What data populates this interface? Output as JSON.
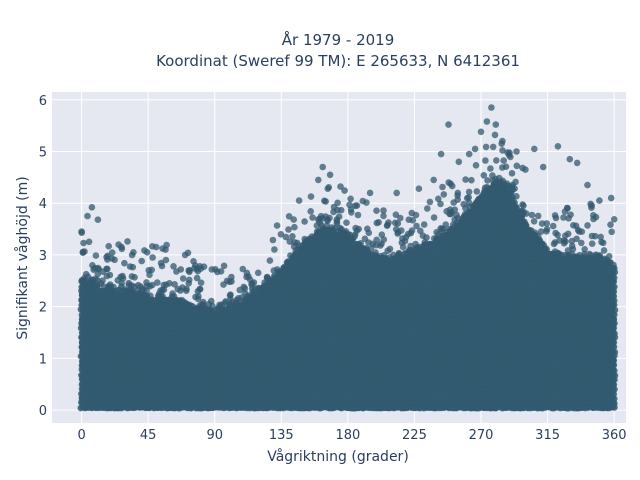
{
  "chart_data": {
    "type": "scatter",
    "title_line1": "År 1979 - 2019",
    "title_line2": "Koordinat (Sweref 99 TM): E 265633, N 6412361",
    "xlabel": "Vågriktning (grader)",
    "ylabel": "Signifikant våghöjd (m)",
    "xlim": [
      -20,
      368
    ],
    "ylim": [
      -0.25,
      6.15
    ],
    "xticks": [
      0,
      45,
      90,
      135,
      180,
      225,
      270,
      315,
      360
    ],
    "yticks": [
      0,
      1,
      2,
      3,
      4,
      5,
      6
    ],
    "grid": true,
    "legend": "none",
    "colors": {
      "marker": "#335a70",
      "plot_bg": "#e5e8f0",
      "grid": "#ffffff",
      "text": "#2a3f5f"
    },
    "upper_envelope": {
      "x": [
        0,
        10,
        20,
        30,
        45,
        60,
        75,
        90,
        105,
        120,
        135,
        150,
        165,
        180,
        195,
        210,
        225,
        240,
        255,
        270,
        280,
        290,
        300,
        315,
        330,
        345,
        360
      ],
      "y": [
        2.5,
        2.4,
        2.3,
        2.3,
        2.2,
        2.2,
        2.0,
        1.9,
        2.0,
        2.3,
        2.7,
        3.2,
        3.5,
        3.4,
        3.0,
        2.9,
        3.1,
        3.3,
        3.6,
        4.1,
        4.4,
        4.2,
        3.6,
        3.1,
        2.9,
        3.0,
        2.8
      ]
    },
    "outliers": [
      {
        "x": 0,
        "y": 3.45
      },
      {
        "x": 4,
        "y": 3.75
      },
      {
        "x": 7,
        "y": 3.92
      },
      {
        "x": 11,
        "y": 3.68
      },
      {
        "x": 25,
        "y": 3.2
      },
      {
        "x": 35,
        "y": 3.05
      },
      {
        "x": 48,
        "y": 2.95
      },
      {
        "x": 57,
        "y": 2.9
      },
      {
        "x": 70,
        "y": 3.0
      },
      {
        "x": 80,
        "y": 2.78
      },
      {
        "x": 88,
        "y": 2.72
      },
      {
        "x": 100,
        "y": 2.48
      },
      {
        "x": 147,
        "y": 4.05
      },
      {
        "x": 160,
        "y": 4.45
      },
      {
        "x": 163,
        "y": 4.7
      },
      {
        "x": 168,
        "y": 4.55
      },
      {
        "x": 175,
        "y": 4.32
      },
      {
        "x": 185,
        "y": 3.95
      },
      {
        "x": 195,
        "y": 4.2
      },
      {
        "x": 213,
        "y": 4.2
      },
      {
        "x": 228,
        "y": 4.28
      },
      {
        "x": 238,
        "y": 4.45
      },
      {
        "x": 243,
        "y": 4.95
      },
      {
        "x": 248,
        "y": 5.52
      },
      {
        "x": 255,
        "y": 4.8
      },
      {
        "x": 262,
        "y": 4.95
      },
      {
        "x": 266,
        "y": 5.05
      },
      {
        "x": 270,
        "y": 5.38
      },
      {
        "x": 274,
        "y": 5.58
      },
      {
        "x": 277,
        "y": 5.85
      },
      {
        "x": 280,
        "y": 5.52
      },
      {
        "x": 284,
        "y": 5.15
      },
      {
        "x": 288,
        "y": 4.98
      },
      {
        "x": 294,
        "y": 5.0
      },
      {
        "x": 300,
        "y": 4.65
      },
      {
        "x": 306,
        "y": 5.05
      },
      {
        "x": 312,
        "y": 4.7
      },
      {
        "x": 322,
        "y": 5.1
      },
      {
        "x": 330,
        "y": 4.85
      },
      {
        "x": 335,
        "y": 4.78
      },
      {
        "x": 342,
        "y": 4.35
      },
      {
        "x": 350,
        "y": 4.05
      },
      {
        "x": 358,
        "y": 4.1
      }
    ]
  }
}
